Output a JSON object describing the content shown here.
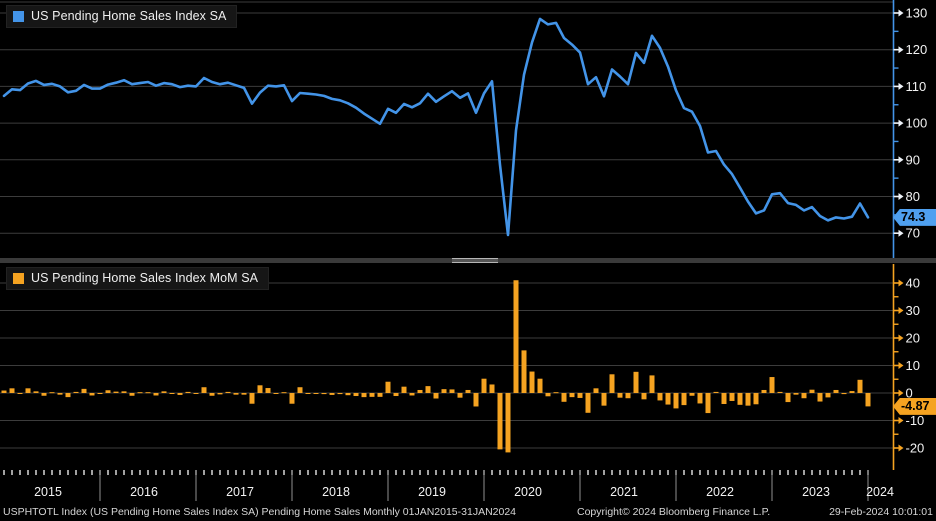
{
  "panels": {
    "top": {
      "legend": "US Pending Home Sales Index SA",
      "last_value_label": "74.3",
      "series_color": "#4394e8",
      "tag_color": "#4fa0f0",
      "tick_labels": [
        "130",
        "120",
        "110",
        "100",
        "90",
        "80",
        "70"
      ]
    },
    "bottom": {
      "legend": "US Pending Home Sales Index MoM SA",
      "last_value_label": "-4.87",
      "series_color": "#f5a321",
      "tag_color": "#f5a321",
      "tick_labels": [
        "40",
        "30",
        "20",
        "10",
        "0",
        "-10",
        "-20"
      ]
    }
  },
  "x_axis": {
    "years": [
      "2015",
      "2016",
      "2017",
      "2018",
      "2019",
      "2020",
      "2021",
      "2022",
      "2023",
      "2024"
    ]
  },
  "footer": {
    "left": "USPHTOTL Index (US Pending Home Sales Index SA) Pending Home Sales  Monthly 01JAN2015-31JAN2024",
    "center": "Copyright© 2024 Bloomberg Finance L.P.",
    "right": "29-Feb-2024 10:01:01"
  },
  "colors": {
    "background": "#000000",
    "grid": "#3c3c3c",
    "axis_text": "#f2f2f2",
    "year_divider": "#8f8f8f",
    "x_tick": "#e8e8e8"
  },
  "chart_data": [
    {
      "type": "line",
      "name": "US Pending Home Sales Index SA",
      "x_start": "2015-01",
      "x_end": "2024-01",
      "x_freq": "monthly",
      "ylim": [
        66,
        133.5
      ],
      "yticks": [
        70,
        80,
        90,
        100,
        110,
        120,
        130
      ],
      "grid": true,
      "legend_position": "top-left",
      "last_value": 74.3,
      "values": [
        107.4,
        109.2,
        109.0,
        110.8,
        111.5,
        110.4,
        110.7,
        110.0,
        108.4,
        108.8,
        110.4,
        109.4,
        109.4,
        110.5,
        111.0,
        111.7,
        110.6,
        110.9,
        111.2,
        110.2,
        110.9,
        110.6,
        109.8,
        110.2,
        110.0,
        112.3,
        111.2,
        110.6,
        111.0,
        110.3,
        109.6,
        105.3,
        108.3,
        110.2,
        110.0,
        110.3,
        106.0,
        108.2,
        108.0,
        107.8,
        107.4,
        106.6,
        106.2,
        105.4,
        104.2,
        102.6,
        101.2,
        99.8,
        103.9,
        102.8,
        105.2,
        104.3,
        105.4,
        108.0,
        105.8,
        107.3,
        108.7,
        106.9,
        108.1,
        102.8,
        108.1,
        111.4,
        88.6,
        69.5,
        98.0,
        113.2,
        122.0,
        128.4,
        126.9,
        127.3,
        123.2,
        121.4,
        119.2,
        110.6,
        112.5,
        107.3,
        114.6,
        112.7,
        110.6,
        119.1,
        116.4,
        123.8,
        120.5,
        115.4,
        108.9,
        104.1,
        103.1,
        99.2,
        92.0,
        92.4,
        88.7,
        86.1,
        82.4,
        78.6,
        75.4,
        76.2,
        80.6,
        80.9,
        78.2,
        77.7,
        76.2,
        77.1,
        74.7,
        73.5,
        74.3,
        74.0,
        74.5,
        78.1,
        74.3
      ]
    },
    {
      "type": "bar",
      "name": "US Pending Home Sales Index MoM SA",
      "x_start": "2015-01",
      "x_end": "2024-01",
      "x_freq": "monthly",
      "ylim": [
        -28,
        47
      ],
      "yticks": [
        -20,
        -10,
        0,
        10,
        20,
        30,
        40
      ],
      "grid": true,
      "legend_position": "top-left",
      "last_value": -4.87,
      "values": [
        0.9,
        1.7,
        -0.2,
        1.7,
        0.6,
        -1.0,
        0.3,
        -0.6,
        -1.5,
        0.4,
        1.5,
        -0.9,
        0.0,
        1.0,
        0.5,
        0.6,
        -1.0,
        0.3,
        0.3,
        -0.9,
        0.6,
        -0.3,
        -0.7,
        0.4,
        -0.2,
        2.1,
        -1.0,
        -0.5,
        0.4,
        -0.6,
        -0.6,
        -3.9,
        2.8,
        1.8,
        -0.2,
        0.3,
        -3.9,
        2.1,
        -0.2,
        -0.2,
        -0.4,
        -0.7,
        -0.4,
        -0.8,
        -1.1,
        -1.5,
        -1.4,
        -1.4,
        4.1,
        -1.1,
        2.3,
        -0.9,
        1.1,
        2.5,
        -2.0,
        1.4,
        1.3,
        -1.7,
        1.1,
        -4.9,
        5.2,
        3.1,
        -20.5,
        -21.6,
        41.0,
        15.5,
        7.8,
        5.2,
        -1.2,
        0.3,
        -3.2,
        -1.5,
        -1.8,
        -7.2,
        1.7,
        -4.6,
        6.8,
        -1.7,
        -1.9,
        7.7,
        -2.3,
        6.4,
        -2.7,
        -4.2,
        -5.6,
        -4.4,
        -1.0,
        -3.8,
        -7.3,
        0.4,
        -4.0,
        -2.9,
        -4.3,
        -4.6,
        -4.1,
        1.1,
        5.8,
        0.4,
        -3.3,
        -0.6,
        -1.9,
        1.2,
        -3.1,
        -1.6,
        1.1,
        -0.4,
        0.7,
        4.8,
        -4.87
      ]
    }
  ]
}
